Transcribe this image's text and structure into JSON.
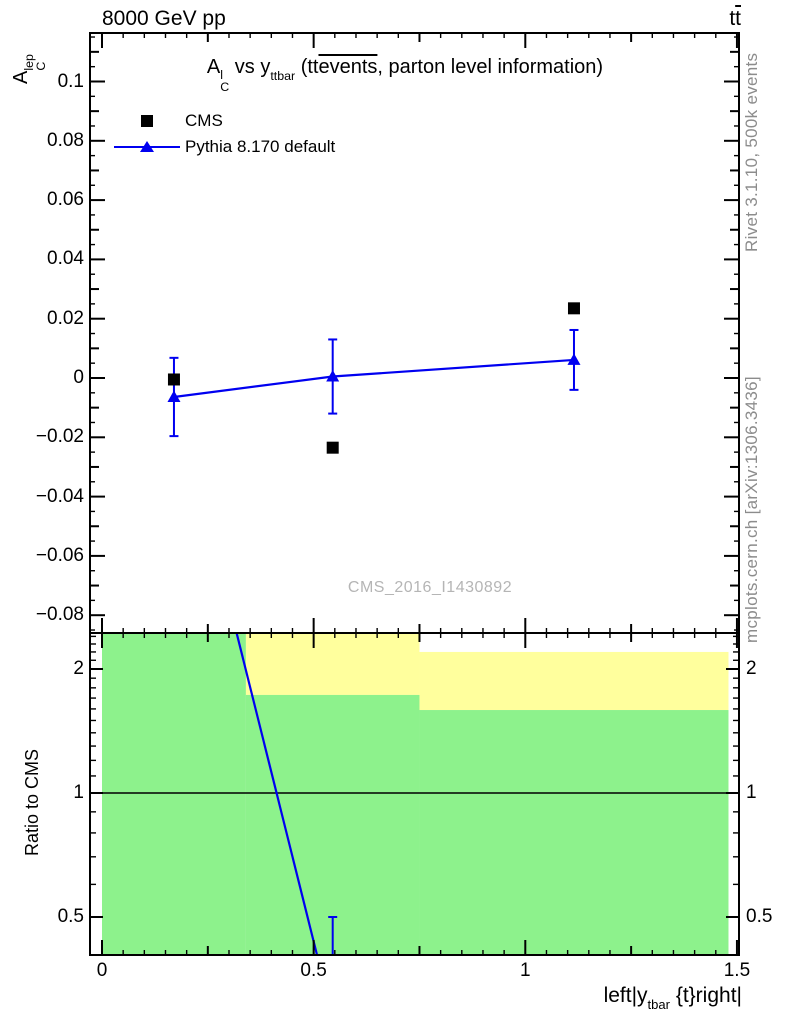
{
  "header": {
    "beam": "8000 GeV pp",
    "process_prefix": "t",
    "process_bar": "t"
  },
  "title": {
    "symbol_base": "A",
    "symbol_sup": "l",
    "symbol_sub": "C",
    "vs": " vs ",
    "yvar_base": "y",
    "yvar_sub": "ttbar",
    "paren_prefix": " (tt",
    "paren_overline": "events",
    "paren_close": ", parton level information)"
  },
  "legend": {
    "items": [
      {
        "label": "CMS",
        "marker": "black-filled-square"
      },
      {
        "label": "Pythia 8.170 default",
        "marker": "blue-triangle-on-line"
      }
    ]
  },
  "watermark": "CMS_2016_I1430892",
  "right_margin": {
    "rivet": "Rivet 3.1.10,  500k events",
    "mcplots": "mcplots.cern.ch [arXiv:1306.3436]"
  },
  "axes_titles": {
    "y_main_base": "A",
    "y_main_sup": "lep",
    "y_main_sub": "C",
    "y_ratio": "Ratio to CMS",
    "x_prefix": "left|y",
    "x_sub": "tbar",
    "x_suffix": " {t}right|"
  },
  "colors": {
    "mc_blue": "#0000f0",
    "data_black": "#000000",
    "green_band": "#8df28c",
    "yellow_band": "#ffff9d",
    "watermark_gray": "#b5b5b5",
    "side_text_gray": "#8c8c8c"
  },
  "chart_data": {
    "type": "scatter",
    "title": "A_C^l vs y_ttbar (ttevents, parton level information)",
    "x_bins": [
      [
        0,
        0.34
      ],
      [
        0.34,
        0.75
      ],
      [
        0.75,
        1.48
      ]
    ],
    "x_centers": [
      0.17,
      0.545,
      1.115
    ],
    "series": [
      {
        "name": "CMS",
        "marker": "filled-square",
        "color": "#000000",
        "values": [
          -0.0005,
          -0.0235,
          0.0235
        ]
      },
      {
        "name": "Pythia 8.170 default",
        "marker": "filled-triangle",
        "color": "#0000f0",
        "line": true,
        "values": [
          -0.0064,
          0.0005,
          0.0061
        ],
        "errors": [
          0.0132,
          0.0125,
          0.0101
        ]
      }
    ],
    "main_axis": {
      "label": "A_C^lep",
      "ylim": [
        -0.086,
        0.1164
      ],
      "ticks": [
        0.1,
        0.08,
        0.06,
        0.04,
        0.02,
        0,
        -0.02,
        -0.04,
        -0.06,
        -0.08
      ],
      "tick_labels": [
        "0.1",
        "0.08",
        "0.06",
        "0.04",
        "0.02",
        "0",
        "−0.02",
        "−0.04",
        "−0.06",
        "−0.08"
      ],
      "medium_step": 0.01,
      "minor_step": 0.005
    },
    "x_axis": {
      "xlim": [
        -0.028,
        1.503
      ],
      "major": [
        0,
        0.5,
        1,
        1.5
      ],
      "labels": [
        "0",
        "0.5",
        "1",
        "1.5"
      ],
      "medium_step": 0.25,
      "minor_step": 0.05
    },
    "ratio_axis": {
      "scale": "log",
      "label": "Ratio to CMS",
      "ylim": [
        0.404,
        2.447
      ],
      "ticks": [
        2,
        1,
        0.5
      ],
      "tick_labels": [
        "2",
        "1",
        "0.5"
      ],
      "minor": [
        0.6,
        0.7,
        0.8,
        0.9,
        1.1,
        1.2,
        1.3,
        1.4,
        1.5,
        1.6,
        1.7,
        1.8,
        1.9,
        2.1,
        2.2,
        2.3,
        2.4
      ]
    },
    "ratio_bands": [
      {
        "bin": 0,
        "color": "green",
        "hi": null,
        "lo": null
      },
      {
        "bin": 1,
        "color": "yellow",
        "hi": null,
        "lo": 1.73
      },
      {
        "bin": 1,
        "color": "green",
        "hi": 1.73,
        "lo": null
      },
      {
        "bin": 2,
        "color": "yellow",
        "hi": 2.2,
        "lo": 1.59
      },
      {
        "bin": 2,
        "color": "green",
        "hi": 1.59,
        "lo": null
      }
    ],
    "ratio_reference_line": 1,
    "ratio_curve_segment": {
      "x_at_top": 0.318,
      "x_at_bottom": 0.508
    },
    "ratio_error_bar": {
      "x": 0.545,
      "hi": 0.5,
      "lo": null
    }
  }
}
